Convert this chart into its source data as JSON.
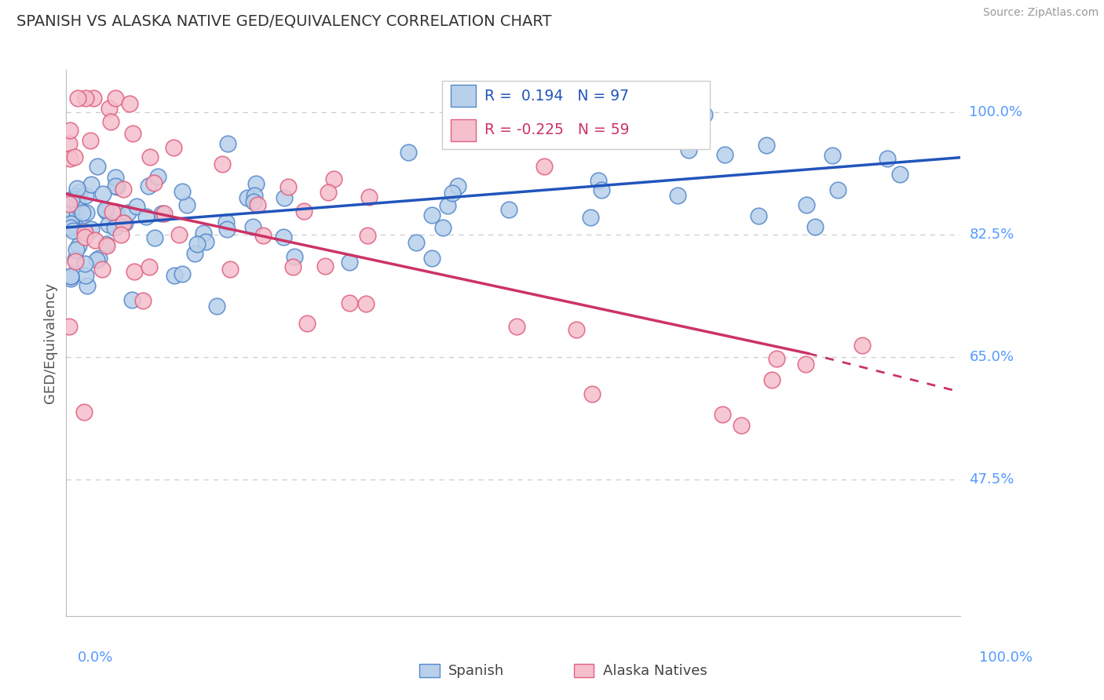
{
  "title": "SPANISH VS ALASKA NATIVE GED/EQUIVALENCY CORRELATION CHART",
  "source": "Source: ZipAtlas.com",
  "ylabel": "GED/Equivalency",
  "ytick_labels": [
    "100.0%",
    "82.5%",
    "65.0%",
    "47.5%"
  ],
  "ytick_values": [
    1.0,
    0.825,
    0.65,
    0.475
  ],
  "xmin": 0.0,
  "xmax": 1.0,
  "ymin": 0.28,
  "ymax": 1.06,
  "blue_R": 0.194,
  "blue_N": 97,
  "pink_R": -0.225,
  "pink_N": 59,
  "blue_face": "#b8d0ea",
  "blue_edge": "#5588cc",
  "pink_face": "#f5bfcc",
  "pink_edge": "#e06080",
  "blue_line": "#2255bb",
  "pink_line": "#cc3366",
  "grid_color": "#cccccc",
  "title_color": "#333333",
  "tick_color": "#5599ff",
  "ylabel_color": "#555555",
  "source_color": "#999999",
  "legend_blue_label": "Spanish",
  "legend_pink_label": "Alaska Natives",
  "blue_line_x0": 0.0,
  "blue_line_y0": 0.835,
  "blue_line_x1": 1.0,
  "blue_line_y1": 0.935,
  "pink_line_x0": 0.0,
  "pink_line_y0": 0.883,
  "pink_line_x1_solid": 0.83,
  "pink_line_y1_solid": 0.655,
  "pink_line_x1_dash": 1.0,
  "pink_line_y1_dash": 0.6
}
